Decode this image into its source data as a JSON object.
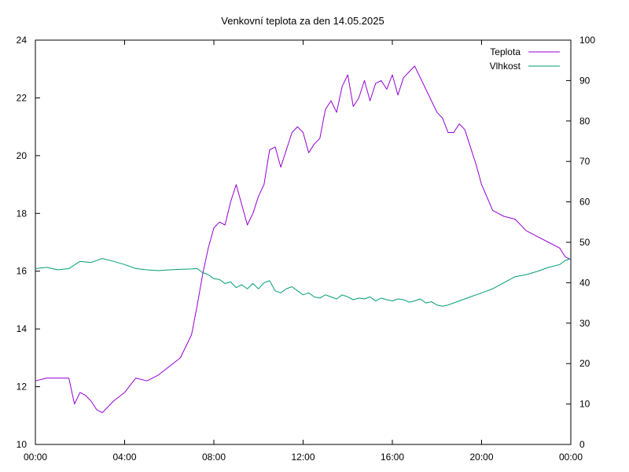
{
  "chart_data": {
    "type": "line",
    "title": "Venkovní teplota za den 14.05.2025",
    "x_ticks": [
      "00:00",
      "04:00",
      "08:00",
      "12:00",
      "16:00",
      "20:00",
      "00:00"
    ],
    "x_unit": "hours",
    "xlim": [
      0,
      24
    ],
    "y_left": {
      "lim": [
        10,
        24
      ],
      "ticks": [
        "10",
        "12",
        "14",
        "16",
        "18",
        "20",
        "22",
        "24"
      ]
    },
    "y_right": {
      "lim": [
        0,
        100
      ],
      "ticks": [
        "0",
        "10",
        "20",
        "30",
        "40",
        "50",
        "60",
        "70",
        "80",
        "90",
        "100"
      ]
    },
    "grid": false,
    "legend_position": "top-right",
    "series": [
      {
        "name": "Teplota",
        "axis": "left",
        "color": "#9400d3",
        "x": [
          0,
          0.5,
          1,
          1.5,
          1.75,
          2.0,
          2.25,
          2.5,
          2.75,
          3.0,
          3.25,
          3.5,
          4.0,
          4.5,
          5.0,
          5.5,
          6.0,
          6.5,
          7.0,
          7.25,
          7.5,
          7.75,
          8.0,
          8.25,
          8.5,
          8.75,
          9.0,
          9.25,
          9.5,
          9.75,
          10.0,
          10.25,
          10.5,
          10.75,
          11.0,
          11.25,
          11.5,
          11.75,
          12.0,
          12.25,
          12.5,
          12.75,
          13.0,
          13.25,
          13.5,
          13.75,
          14.0,
          14.25,
          14.5,
          14.75,
          15.0,
          15.25,
          15.5,
          15.75,
          16.0,
          16.25,
          16.5,
          16.75,
          17.0,
          17.25,
          17.5,
          17.75,
          18.0,
          18.25,
          18.5,
          18.75,
          19.0,
          19.25,
          19.5,
          19.75,
          20.0,
          20.5,
          21.0,
          21.5,
          22.0,
          22.5,
          23.0,
          23.5,
          23.75,
          24.0
        ],
        "values": [
          12.2,
          12.3,
          12.3,
          12.3,
          11.4,
          11.8,
          11.7,
          11.5,
          11.2,
          11.1,
          11.3,
          11.5,
          11.8,
          12.3,
          12.2,
          12.4,
          12.7,
          13.0,
          13.8,
          14.8,
          15.9,
          16.8,
          17.5,
          17.7,
          17.6,
          18.4,
          19.0,
          18.3,
          17.6,
          18.0,
          18.6,
          19.0,
          20.2,
          20.3,
          19.6,
          20.2,
          20.8,
          21.0,
          20.8,
          20.1,
          20.4,
          20.6,
          21.6,
          21.9,
          21.5,
          22.4,
          22.8,
          21.7,
          22.0,
          22.6,
          21.9,
          22.5,
          22.6,
          22.3,
          22.8,
          22.1,
          22.7,
          22.9,
          23.1,
          22.7,
          22.3,
          21.9,
          21.5,
          21.3,
          20.8,
          20.8,
          21.1,
          20.9,
          20.3,
          19.7,
          19.0,
          18.1,
          17.9,
          17.8,
          17.4,
          17.2,
          17.0,
          16.8,
          16.5,
          16.4
        ]
      },
      {
        "name": "Vlhkost",
        "axis": "right",
        "color": "#009e73",
        "x": [
          0,
          0.5,
          1,
          1.5,
          2.0,
          2.5,
          3.0,
          3.5,
          4.0,
          4.5,
          5.0,
          5.5,
          6.0,
          6.5,
          7.0,
          7.25,
          7.5,
          7.75,
          8.0,
          8.25,
          8.5,
          8.75,
          9.0,
          9.25,
          9.5,
          9.75,
          10.0,
          10.25,
          10.5,
          10.75,
          11.0,
          11.25,
          11.5,
          11.75,
          12.0,
          12.25,
          12.5,
          12.75,
          13.0,
          13.25,
          13.5,
          13.75,
          14.0,
          14.25,
          14.5,
          14.75,
          15.0,
          15.25,
          15.5,
          15.75,
          16.0,
          16.25,
          16.5,
          16.75,
          17.0,
          17.25,
          17.5,
          17.75,
          18.0,
          18.25,
          18.5,
          18.75,
          19.0,
          19.5,
          20.0,
          20.5,
          21.0,
          21.5,
          22.0,
          22.5,
          23.0,
          23.5,
          23.75,
          24.0
        ],
        "values": [
          43.5,
          43.8,
          43.2,
          43.5,
          45.3,
          45.0,
          46.0,
          45.3,
          44.5,
          43.5,
          43.2,
          43.0,
          43.2,
          43.3,
          43.4,
          43.5,
          42.5,
          42.0,
          41.0,
          40.8,
          39.8,
          40.2,
          38.8,
          39.5,
          38.5,
          39.8,
          38.5,
          40.0,
          40.5,
          38.0,
          37.5,
          38.5,
          39.0,
          38.0,
          37.0,
          37.5,
          36.5,
          36.2,
          37.0,
          36.5,
          36.0,
          37.0,
          36.5,
          35.8,
          36.2,
          36.0,
          36.5,
          35.5,
          36.2,
          35.8,
          35.5,
          36.0,
          35.8,
          35.2,
          35.5,
          36.0,
          35.0,
          35.3,
          34.5,
          34.2,
          34.5,
          35.0,
          35.5,
          36.5,
          37.5,
          38.5,
          40.0,
          41.5,
          42.0,
          42.8,
          43.8,
          44.5,
          45.5,
          46.0
        ]
      }
    ]
  }
}
